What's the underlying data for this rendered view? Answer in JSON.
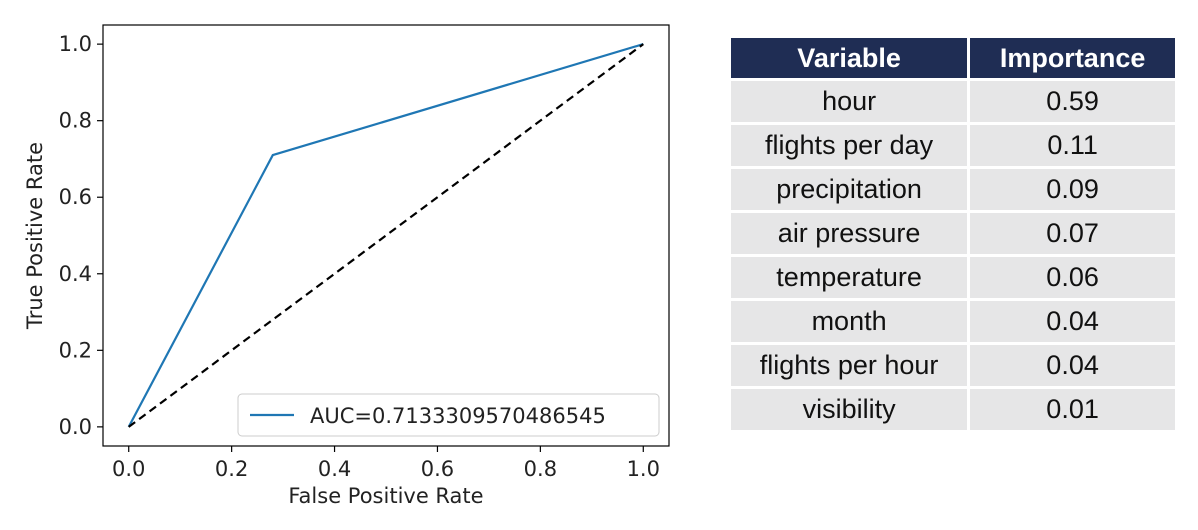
{
  "chart_data": {
    "type": "line",
    "xlabel": "False Positive Rate",
    "ylabel": "True Positive Rate",
    "xlim": [
      -0.05,
      1.05
    ],
    "ylim": [
      -0.05,
      1.05
    ],
    "xticks": [
      "0.0",
      "0.2",
      "0.4",
      "0.6",
      "0.8",
      "1.0"
    ],
    "yticks": [
      "0.0",
      "0.2",
      "0.4",
      "0.6",
      "0.8",
      "1.0"
    ],
    "grid": false,
    "legend_position": "lower-right",
    "series": [
      {
        "name": "AUC=0.7133309570486545",
        "color": "#1f77b4",
        "style": "solid",
        "x": [
          0.0,
          0.28,
          1.0
        ],
        "y": [
          0.0,
          0.71,
          1.0
        ]
      },
      {
        "color": "#000000",
        "style": "dashed",
        "x": [
          0.0,
          1.0
        ],
        "y": [
          0.0,
          1.0
        ]
      }
    ]
  },
  "table": {
    "headers": [
      "Variable",
      "Importance"
    ],
    "rows": [
      [
        "hour",
        "0.59"
      ],
      [
        "flights per day",
        "0.11"
      ],
      [
        "precipitation",
        "0.09"
      ],
      [
        "air pressure",
        "0.07"
      ],
      [
        "temperature",
        "0.06"
      ],
      [
        "month",
        "0.04"
      ],
      [
        "flights per hour",
        "0.04"
      ],
      [
        "visibility",
        "0.01"
      ]
    ],
    "header_color": "#1f2d54",
    "cell_color": "#e6e6e7"
  }
}
